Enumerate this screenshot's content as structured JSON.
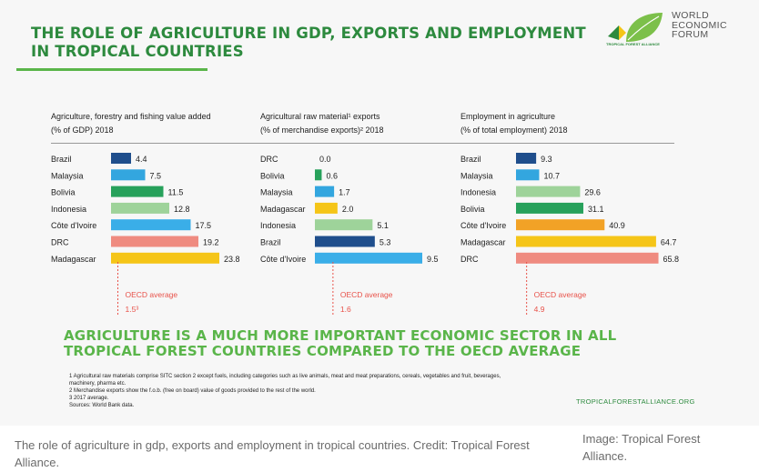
{
  "title": "THE ROLE OF AGRICULTURE IN GDP, EXPORTS AND EMPLOYMENT IN TROPICAL COUNTRIES",
  "logos": {
    "tfa_text": "TROPICAL FOREST ALLIANCE",
    "wef_lines": [
      "WORLD",
      "ECONOMIC",
      "FORUM"
    ]
  },
  "colors": {
    "title_green": "#2d8a3e",
    "headline_green": "#5ab54a",
    "dark_blue": "#1f4e8c",
    "light_blue": "#33a6df",
    "dark_green": "#27a15b",
    "light_green": "#9ed39a",
    "sky_blue": "#3aaee8",
    "salmon": "#ef8b80",
    "yellow": "#f5c518",
    "orange": "#f2a226",
    "oecd_red": "#e8524a"
  },
  "chart_data": [
    {
      "type": "bar",
      "orientation": "horizontal",
      "title_lines": [
        "Agriculture, forestry and fishing value added",
        "(% of GDP) 2018"
      ],
      "categories": [
        "Brazil",
        "Malaysia",
        "Bolivia",
        "Indonesia",
        "Côte d'Ivoire",
        "DRC",
        "Madagascar"
      ],
      "values": [
        4.4,
        7.5,
        11.5,
        12.8,
        17.5,
        19.2,
        23.8
      ],
      "value_labels": [
        "4.4",
        "7.5",
        "11.5",
        "12.8",
        "17.5",
        "19.2",
        "23.8"
      ],
      "bar_colors": [
        "#1f4e8c",
        "#33a6df",
        "#27a15b",
        "#9ed39a",
        "#3aaee8",
        "#ef8b80",
        "#f5c518"
      ],
      "reference": {
        "label": "OECD average",
        "value": 1.5,
        "value_label": "1.5³"
      },
      "xlim": [
        0,
        24
      ]
    },
    {
      "type": "bar",
      "orientation": "horizontal",
      "title_lines": [
        "Agricultural raw material¹ exports",
        "(% of merchandise exports)² 2018"
      ],
      "categories": [
        "DRC",
        "Bolivia",
        "Malaysia",
        "Madagascar",
        "Indonesia",
        "Brazil",
        "Côte d'Ivoire"
      ],
      "values": [
        0.0,
        0.6,
        1.7,
        2.0,
        5.1,
        5.3,
        9.5
      ],
      "value_labels": [
        "0.0",
        "0.6",
        "1.7",
        "2.0",
        "5.1",
        "5.3",
        "9.5"
      ],
      "bar_colors": [
        "#ef8b80",
        "#27a15b",
        "#33a6df",
        "#f5c518",
        "#9ed39a",
        "#1f4e8c",
        "#3aaee8"
      ],
      "reference": {
        "label": "OECD average",
        "value": 1.6,
        "value_label": "1.6"
      },
      "xlim": [
        0,
        9.5
      ]
    },
    {
      "type": "bar",
      "orientation": "horizontal",
      "title_lines": [
        "Employment in agriculture",
        "(% of total employment) 2018"
      ],
      "categories": [
        "Brazil",
        "Malaysia",
        "Indonesia",
        "Bolivia",
        "Côte d'Ivoire",
        "Madagascar",
        "DRC"
      ],
      "values": [
        9.3,
        10.7,
        29.6,
        31.1,
        40.9,
        64.7,
        65.8
      ],
      "value_labels": [
        "9.3",
        "10.7",
        "29.6",
        "31.1",
        "40.9",
        "64.7",
        "65.8"
      ],
      "bar_colors": [
        "#1f4e8c",
        "#33a6df",
        "#9ed39a",
        "#27a15b",
        "#f2a226",
        "#f5c518",
        "#ef8b80"
      ],
      "reference": {
        "label": "OECD average",
        "value": 4.9,
        "value_label": "4.9"
      },
      "xlim": [
        0,
        66
      ]
    }
  ],
  "headline": "AGRICULTURE IS A MUCH MORE IMPORTANT ECONOMIC SECTOR IN ALL TROPICAL FOREST COUNTRIES COMPARED TO THE OECD AVERAGE",
  "notes": [
    "1 Agricultural raw materials comprise SITC section 2 except fuels, including categories such as live animals, meat and meat preparations, cereals, vegetables and fruit, beverages,",
    "machinery, pharma etc.",
    "2 Merchandise exports show the f.o.b. (free on board) value of goods provided to the rest of the world.",
    "3 2017 average.",
    "Sources: World Bank data."
  ],
  "source_url": "TROPICALFORESTALLIANCE.ORG",
  "caption": "The role of agriculture in gdp, exports and employment in tropical countries. Credit: Tropical Forest Alliance.",
  "image_credit": "Image: Tropical Forest Alliance."
}
